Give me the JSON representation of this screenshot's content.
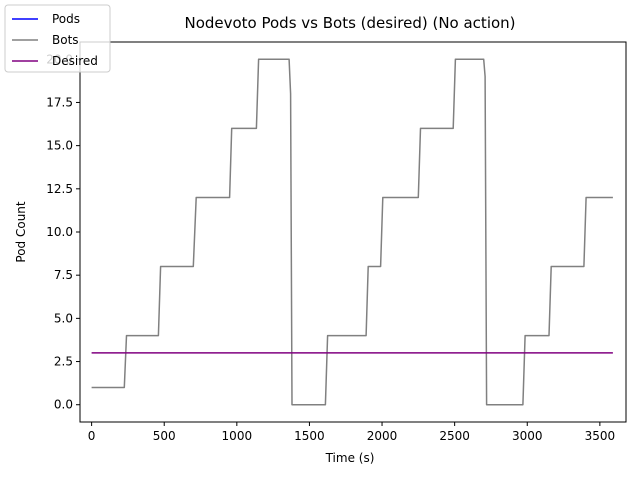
{
  "chart_data": {
    "type": "line",
    "title": "Nodevoto Pods vs Bots (desired)  (No action)",
    "xlabel": "Time (s)",
    "ylabel": "Pod Count",
    "xlim": [
      -80,
      3680
    ],
    "ylim": [
      -1.0,
      21.0
    ],
    "xticks": [
      0,
      500,
      1000,
      1500,
      2000,
      2500,
      3000,
      3500
    ],
    "xtick_labels": [
      "0",
      "500",
      "1000",
      "1500",
      "2000",
      "2500",
      "3000",
      "3500"
    ],
    "yticks": [
      0.0,
      2.5,
      5.0,
      7.5,
      10.0,
      12.5,
      15.0,
      17.5,
      20.0
    ],
    "ytick_labels": [
      "0.0",
      "2.5",
      "5.0",
      "7.5",
      "10.0",
      "12.5",
      "15.0",
      "17.5",
      "20.0"
    ],
    "grid": false,
    "legend_position": "top-left",
    "series": [
      {
        "name": "Pods",
        "color": "#0000ff",
        "x": [],
        "y": []
      },
      {
        "name": "Bots",
        "color": "#808080",
        "x": [
          0,
          110,
          225,
          240,
          460,
          475,
          700,
          720,
          950,
          965,
          1135,
          1150,
          1360,
          1370,
          1380,
          1610,
          1625,
          1890,
          1905,
          1990,
          2005,
          2250,
          2265,
          2490,
          2505,
          2700,
          2710,
          2720,
          2970,
          2985,
          3150,
          3165,
          3390,
          3405,
          3590
        ],
        "y": [
          1,
          1,
          1,
          4,
          4,
          8,
          8,
          12,
          12,
          16,
          16,
          20,
          20,
          18,
          0,
          0,
          4,
          4,
          8,
          8,
          12,
          12,
          16,
          16,
          20,
          20,
          19,
          0,
          0,
          4,
          4,
          8,
          8,
          12,
          12
        ]
      },
      {
        "name": "Desired",
        "color": "#800080",
        "x": [
          0,
          3590
        ],
        "y": [
          3,
          3
        ]
      }
    ]
  }
}
